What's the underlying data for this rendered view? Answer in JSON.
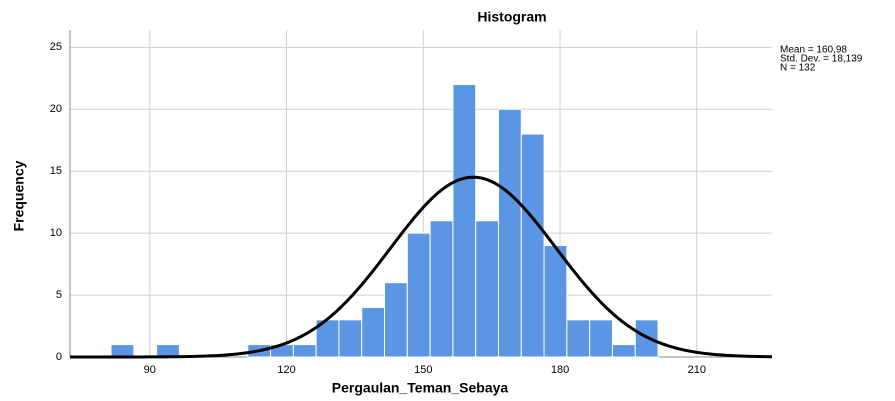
{
  "chart_data": {
    "type": "histogram",
    "title": "Histogram",
    "x_label": "Pergaulan_Teman_Sebaya",
    "y_label": "Frequency",
    "bins": [
      81.5,
      86.5,
      91.5,
      96.5,
      101.5,
      106.5,
      111.5,
      116.5,
      121.5,
      126.5,
      131.5,
      136.5,
      141.5,
      146.5,
      151.5,
      156.5,
      161.5,
      166.5,
      171.5,
      176.5,
      181.5,
      186.5,
      191.5,
      196.5,
      201.5
    ],
    "values": [
      1,
      0,
      1,
      0,
      0,
      0,
      1,
      1,
      1,
      3,
      3,
      4,
      6,
      10,
      11,
      22,
      11,
      20,
      18,
      9,
      3,
      3,
      1,
      3
    ],
    "color": "#5a96e3",
    "curve_color": "#000000",
    "xlim": [
      72.5,
      226.5
    ],
    "xticks": [
      90,
      120,
      150,
      180,
      210
    ],
    "ylim": [
      0,
      26.4
    ],
    "yticks": [
      0,
      5,
      10,
      15,
      20,
      25
    ],
    "grid": true,
    "normal_curve": {
      "mean": 160.98,
      "std": 18.139,
      "n": 132
    },
    "stats_labels": [
      "Mean = 160,98",
      "Std. Dev. = 18,139",
      "N = 132"
    ]
  }
}
